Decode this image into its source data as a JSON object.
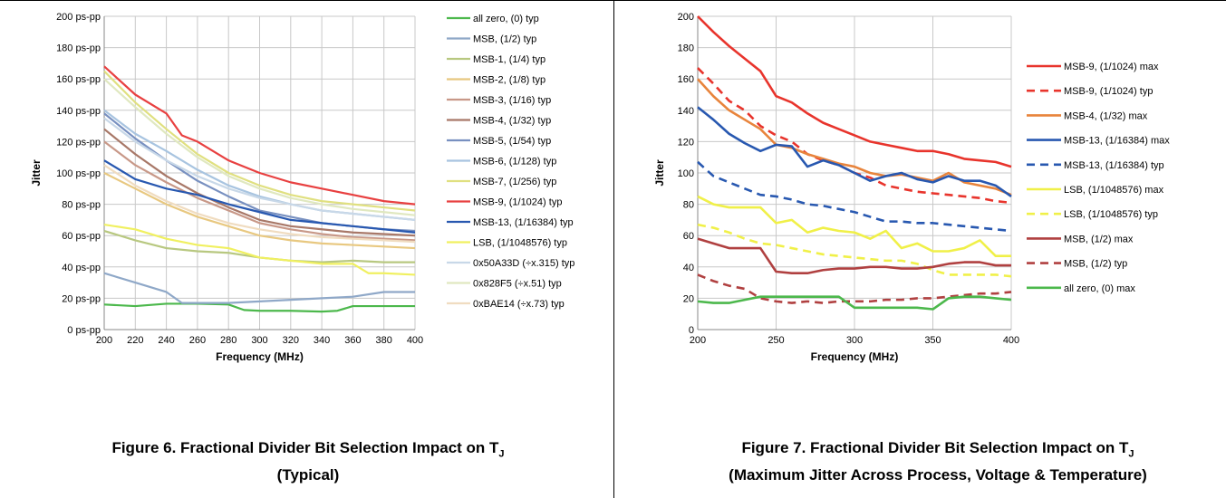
{
  "colors": {
    "grid": "#c8c8c8",
    "axis": "#888888"
  },
  "captions": {
    "fig6_line1": "Figure 6. Fractional Divider Bit Selection Impact on T",
    "fig6_sub": "J",
    "fig6_line2": "(Typical)",
    "fig7_line1": "Figure 7. Fractional Divider Bit Selection Impact on T",
    "fig7_sub": "J",
    "fig7_line2": "(Maximum Jitter Across Process, Voltage & Temperature)"
  },
  "chart_data": [
    {
      "type": "line",
      "xlabel": "Frequency (MHz)",
      "ylabel": "Jitter",
      "xlim": [
        200,
        400
      ],
      "ylim": [
        0,
        200
      ],
      "x_ticks": [
        "200",
        "220",
        "240",
        "260",
        "280",
        "300",
        "320",
        "340",
        "360",
        "380",
        "400"
      ],
      "y_ticks": [
        "0 ps-pp",
        "20 ps-pp",
        "40 ps-pp",
        "60 ps-pp",
        "80 ps-pp",
        "100 ps-pp",
        "120 ps-pp",
        "140 ps-pp",
        "160 ps-pp",
        "180 ps-pp",
        "200 ps-pp"
      ],
      "grid": true,
      "legend_position": "right",
      "series": [
        {
          "name": "all zero, (0) typ",
          "color": "#4cb84c",
          "dash": "solid",
          "x": [
            200,
            220,
            240,
            260,
            280,
            290,
            300,
            320,
            340,
            350,
            360,
            380,
            400
          ],
          "y": [
            16,
            15,
            16.5,
            16.5,
            16,
            12.5,
            12,
            12,
            11.5,
            12,
            15,
            15,
            15
          ]
        },
        {
          "name": "MSB, (1/2) typ",
          "color": "#8fa8c8",
          "dash": "solid",
          "x": [
            200,
            220,
            240,
            250,
            260,
            280,
            300,
            320,
            340,
            360,
            380,
            400
          ],
          "y": [
            36,
            30,
            24,
            17,
            17,
            17,
            18,
            19,
            20,
            21,
            24,
            24
          ]
        },
        {
          "name": "MSB-1, (1/4) typ",
          "color": "#b8c880",
          "dash": "solid",
          "x": [
            200,
            220,
            240,
            260,
            280,
            300,
            320,
            340,
            360,
            380,
            400
          ],
          "y": [
            63,
            57,
            52,
            50,
            49,
            46,
            44,
            43,
            44,
            43,
            43
          ]
        },
        {
          "name": "MSB-2, (1/8) typ",
          "color": "#e8c880",
          "dash": "solid",
          "x": [
            200,
            220,
            240,
            260,
            280,
            300,
            320,
            340,
            360,
            380,
            400
          ],
          "y": [
            100,
            90,
            80,
            72,
            66,
            60,
            57,
            55,
            54,
            53,
            52
          ]
        },
        {
          "name": "MSB-3, (1/16) typ",
          "color": "#c89888",
          "dash": "solid",
          "x": [
            200,
            220,
            240,
            260,
            280,
            300,
            320,
            340,
            360,
            380,
            400
          ],
          "y": [
            120,
            105,
            94,
            84,
            76,
            68,
            64,
            61,
            59,
            58,
            57
          ]
        },
        {
          "name": "MSB-4, (1/32) typ",
          "color": "#a87868",
          "dash": "solid",
          "x": [
            200,
            220,
            240,
            260,
            280,
            300,
            320,
            340,
            360,
            380,
            400
          ],
          "y": [
            128,
            112,
            98,
            87,
            78,
            70,
            66,
            64,
            62,
            61,
            60
          ]
        },
        {
          "name": "MSB-5, (1/54) typ",
          "color": "#7890c0",
          "dash": "solid",
          "x": [
            200,
            220,
            240,
            260,
            280,
            300,
            320,
            340,
            360,
            380,
            400
          ],
          "y": [
            138,
            122,
            108,
            95,
            85,
            76,
            72,
            68,
            66,
            64,
            63
          ]
        },
        {
          "name": "MSB-6, (1/128) typ",
          "color": "#a8c4e0",
          "dash": "solid",
          "x": [
            200,
            220,
            240,
            260,
            280,
            300,
            320,
            340,
            360,
            380,
            400
          ],
          "y": [
            140,
            125,
            114,
            102,
            92,
            85,
            80,
            76,
            74,
            72,
            70
          ]
        },
        {
          "name": "MSB-7, (1/256) typ",
          "color": "#e0e080",
          "dash": "solid",
          "x": [
            200,
            220,
            240,
            260,
            280,
            300,
            320,
            340,
            360,
            380,
            400
          ],
          "y": [
            165,
            145,
            128,
            112,
            100,
            92,
            86,
            82,
            80,
            78,
            76
          ]
        },
        {
          "name": "MSB-9, (1/1024) typ",
          "color": "#e84040",
          "dash": "solid",
          "x": [
            200,
            220,
            240,
            250,
            260,
            280,
            300,
            320,
            340,
            360,
            380,
            400
          ],
          "y": [
            168,
            150,
            138,
            124,
            120,
            108,
            100,
            94,
            90,
            86,
            82,
            80
          ]
        },
        {
          "name": "MSB-13, (1/16384) typ",
          "color": "#2858b0",
          "dash": "solid",
          "x": [
            200,
            220,
            240,
            260,
            280,
            300,
            320,
            340,
            360,
            380,
            400
          ],
          "y": [
            108,
            96,
            90,
            86,
            80,
            75,
            70,
            68,
            66,
            64,
            62
          ]
        },
        {
          "name": "LSB, (1/1048576) typ",
          "color": "#f0f060",
          "dash": "solid",
          "x": [
            200,
            220,
            240,
            260,
            280,
            300,
            320,
            340,
            360,
            370,
            380,
            400
          ],
          "y": [
            67,
            64,
            58,
            54,
            52,
            46,
            44,
            42,
            42,
            36,
            36,
            35
          ]
        },
        {
          "name": "0x50A33D (÷x.315) typ",
          "color": "#c8d8e8",
          "dash": "solid",
          "x": [
            200,
            220,
            240,
            260,
            280,
            300,
            320,
            340,
            360,
            380,
            400
          ],
          "y": [
            135,
            120,
            108,
            98,
            90,
            84,
            80,
            76,
            74,
            72,
            70
          ]
        },
        {
          "name": "0x828F5 (÷x.51) typ",
          "color": "#e0e8c0",
          "dash": "solid",
          "x": [
            200,
            220,
            240,
            260,
            280,
            300,
            320,
            340,
            360,
            380,
            400
          ],
          "y": [
            160,
            142,
            125,
            110,
            98,
            90,
            84,
            80,
            77,
            75,
            73
          ]
        },
        {
          "name": "0xBAE14 (÷x.73) typ",
          "color": "#f0dcc0",
          "dash": "solid",
          "x": [
            200,
            220,
            240,
            260,
            280,
            300,
            320,
            340,
            360,
            380,
            400
          ],
          "y": [
            105,
            92,
            82,
            74,
            68,
            64,
            61,
            59,
            58,
            57,
            56
          ]
        }
      ]
    },
    {
      "type": "line",
      "xlabel": "Frequency (MHz)",
      "ylabel": "Jitter",
      "xlim": [
        200,
        400
      ],
      "ylim": [
        0,
        200
      ],
      "x_ticks": [
        "200",
        "250",
        "300",
        "350",
        "400"
      ],
      "y_ticks": [
        "0",
        "20",
        "40",
        "60",
        "80",
        "100",
        "120",
        "140",
        "160",
        "180",
        "200"
      ],
      "grid": true,
      "legend_position": "right",
      "series": [
        {
          "name": "MSB-9, (1/1024) max",
          "color": "#e8342c",
          "dash": "solid",
          "x": [
            200,
            210,
            220,
            230,
            240,
            250,
            260,
            270,
            280,
            290,
            300,
            310,
            320,
            330,
            340,
            350,
            360,
            370,
            380,
            390,
            400
          ],
          "y": [
            200,
            190,
            181,
            173,
            165,
            149,
            145,
            138,
            132,
            128,
            124,
            120,
            118,
            116,
            114,
            114,
            112,
            109,
            108,
            107,
            104
          ]
        },
        {
          "name": "MSB-9, (1/1024) typ",
          "color": "#e8342c",
          "dash": "dash",
          "x": [
            200,
            210,
            220,
            230,
            240,
            250,
            260,
            270,
            280,
            290,
            300,
            310,
            320,
            330,
            340,
            350,
            360,
            370,
            380,
            390,
            400
          ],
          "y": [
            167,
            157,
            146,
            140,
            130,
            124,
            120,
            112,
            108,
            105,
            100,
            97,
            92,
            90,
            88,
            87,
            86,
            85,
            84,
            82,
            81
          ]
        },
        {
          "name": "MSB-4, (1/32) max",
          "color": "#e8843c",
          "dash": "solid",
          "x": [
            200,
            210,
            220,
            230,
            240,
            250,
            260,
            270,
            280,
            290,
            300,
            310,
            320,
            330,
            340,
            350,
            360,
            370,
            380,
            390,
            400
          ],
          "y": [
            160,
            149,
            140,
            134,
            128,
            118,
            116,
            112,
            109,
            106,
            104,
            100,
            98,
            99,
            97,
            95,
            100,
            94,
            92,
            90,
            86
          ]
        },
        {
          "name": "MSB-13, (1/16384) max",
          "color": "#2858b0",
          "dash": "solid",
          "x": [
            200,
            210,
            220,
            230,
            240,
            250,
            260,
            270,
            280,
            290,
            300,
            310,
            320,
            330,
            340,
            350,
            360,
            370,
            380,
            390,
            400
          ],
          "y": [
            142,
            134,
            125,
            119,
            114,
            118,
            117,
            104,
            108,
            105,
            100,
            95,
            98,
            100,
            96,
            94,
            98,
            95,
            95,
            92,
            85
          ]
        },
        {
          "name": "MSB-13, (1/16384) typ",
          "color": "#2858b0",
          "dash": "dash",
          "x": [
            200,
            210,
            220,
            230,
            240,
            250,
            260,
            270,
            280,
            290,
            300,
            310,
            320,
            330,
            340,
            350,
            360,
            370,
            380,
            390,
            400
          ],
          "y": [
            107,
            98,
            94,
            90,
            86,
            85,
            83,
            80,
            79,
            77,
            75,
            72,
            69,
            69,
            68,
            68,
            67,
            66,
            65,
            64,
            63
          ]
        },
        {
          "name": "LSB, (1/1048576) max",
          "color": "#f0f048",
          "dash": "solid",
          "x": [
            200,
            210,
            220,
            230,
            240,
            250,
            260,
            270,
            280,
            290,
            300,
            310,
            320,
            330,
            340,
            350,
            360,
            370,
            380,
            390,
            400
          ],
          "y": [
            85,
            80,
            78,
            78,
            78,
            68,
            70,
            62,
            65,
            63,
            62,
            58,
            63,
            52,
            55,
            50,
            50,
            52,
            57,
            47,
            47
          ]
        },
        {
          "name": "LSB, (1/1048576) typ",
          "color": "#f0f048",
          "dash": "dash",
          "x": [
            200,
            210,
            220,
            230,
            240,
            250,
            260,
            270,
            280,
            290,
            300,
            310,
            320,
            330,
            340,
            350,
            360,
            370,
            380,
            390,
            400
          ],
          "y": [
            67,
            65,
            62,
            58,
            55,
            54,
            52,
            50,
            48,
            47,
            46,
            45,
            44,
            44,
            42,
            38,
            35,
            35,
            35,
            35,
            34
          ]
        },
        {
          "name": "MSB, (1/2) max",
          "color": "#b04040",
          "dash": "solid",
          "x": [
            200,
            210,
            220,
            230,
            240,
            250,
            260,
            270,
            280,
            290,
            300,
            310,
            320,
            330,
            340,
            350,
            360,
            370,
            380,
            390,
            400
          ],
          "y": [
            58,
            55,
            52,
            52,
            52,
            37,
            36,
            36,
            38,
            39,
            39,
            40,
            40,
            39,
            39,
            40,
            42,
            43,
            43,
            41,
            41
          ]
        },
        {
          "name": "MSB, (1/2) typ",
          "color": "#b04040",
          "dash": "dash",
          "x": [
            200,
            210,
            220,
            230,
            240,
            250,
            260,
            270,
            280,
            290,
            300,
            310,
            320,
            330,
            340,
            350,
            360,
            370,
            380,
            390,
            400
          ],
          "y": [
            35,
            31,
            28,
            26,
            20,
            18,
            17,
            18,
            17,
            18,
            18,
            18,
            19,
            19,
            20,
            20,
            21,
            22,
            23,
            23,
            24
          ]
        },
        {
          "name": "all zero, (0) max",
          "color": "#4cb84c",
          "dash": "solid",
          "x": [
            200,
            210,
            220,
            230,
            240,
            250,
            260,
            270,
            280,
            290,
            300,
            310,
            320,
            330,
            340,
            350,
            360,
            370,
            380,
            390,
            400
          ],
          "y": [
            18,
            17,
            17,
            19,
            21,
            21,
            21,
            21,
            21,
            21,
            14,
            14,
            14,
            14,
            14,
            13,
            20,
            21,
            21,
            20,
            19
          ]
        }
      ]
    }
  ]
}
